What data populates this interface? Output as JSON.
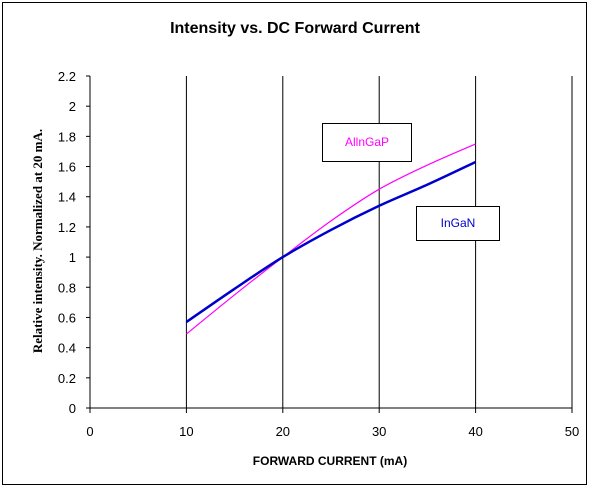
{
  "chart_data": {
    "type": "line",
    "title": "Intensity vs. DC Forward Current",
    "xlabel": "FORWARD CURRENT (mA)",
    "ylabel": "Relative intensity. Normalized at 20 mA.",
    "xlim": [
      0,
      50
    ],
    "ylim": [
      0,
      2.2
    ],
    "x_ticks": [
      "0",
      "10",
      "20",
      "30",
      "40",
      "50"
    ],
    "y_ticks": [
      "0",
      "0.2",
      "0.4",
      "0.6",
      "0.8",
      "1",
      "1.2",
      "1.4",
      "1.6",
      "1.8",
      "2",
      "2.2"
    ],
    "grid": "vertical",
    "series": [
      {
        "name": "AllnGaP",
        "color": "#ff00ff",
        "x": [
          10,
          15,
          20,
          25,
          30,
          35,
          40
        ],
        "y": [
          0.49,
          0.75,
          1.0,
          1.24,
          1.45,
          1.61,
          1.75
        ]
      },
      {
        "name": "InGaN",
        "color": "#0000cc",
        "x": [
          10,
          15,
          20,
          25,
          30,
          35,
          40
        ],
        "y": [
          0.57,
          0.79,
          1.0,
          1.18,
          1.34,
          1.48,
          1.63
        ]
      }
    ]
  }
}
